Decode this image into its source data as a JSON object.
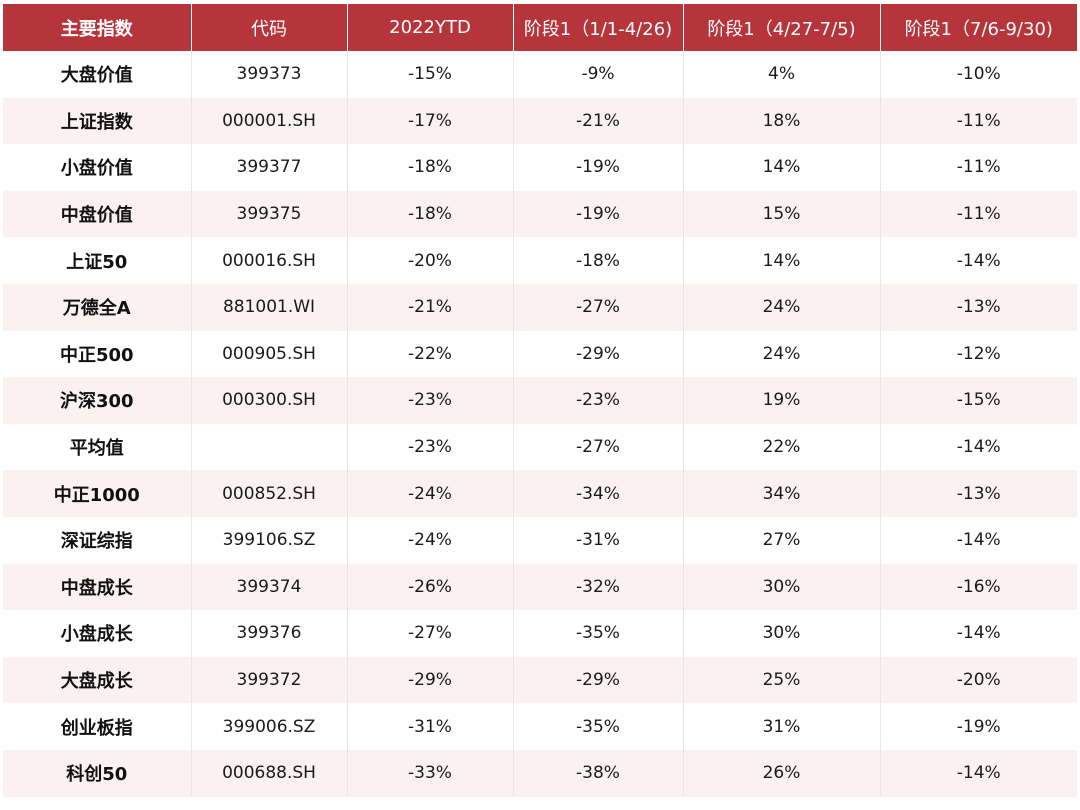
{
  "chart_data": {
    "type": "table",
    "columns": [
      "主要指数",
      "代码",
      "2022YTD",
      "阶段1（1/1-4/26)",
      "阶段1（4/27-7/5)",
      "阶段1（7/6-9/30)"
    ],
    "rows": [
      [
        "大盘价值",
        "399373",
        "-15%",
        "-9%",
        "4%",
        "-10%"
      ],
      [
        "上证指数",
        "000001.SH",
        "-17%",
        "-21%",
        "18%",
        "-11%"
      ],
      [
        "小盘价值",
        "399377",
        "-18%",
        "-19%",
        "14%",
        "-11%"
      ],
      [
        "中盘价值",
        "399375",
        "-18%",
        "-19%",
        "15%",
        "-11%"
      ],
      [
        "上证50",
        "000016.SH",
        "-20%",
        "-18%",
        "14%",
        "-14%"
      ],
      [
        "万德全A",
        "881001.WI",
        "-21%",
        "-27%",
        "24%",
        "-13%"
      ],
      [
        "中正500",
        "000905.SH",
        "-22%",
        "-29%",
        "24%",
        "-12%"
      ],
      [
        "沪深300",
        "000300.SH",
        "-23%",
        "-23%",
        "19%",
        "-15%"
      ],
      [
        "平均值",
        "",
        "-23%",
        "-27%",
        "22%",
        "-14%"
      ],
      [
        "中正1000",
        "000852.SH",
        "-24%",
        "-34%",
        "34%",
        "-13%"
      ],
      [
        "深证综指",
        "399106.SZ",
        "-24%",
        "-31%",
        "27%",
        "-14%"
      ],
      [
        "中盘成长",
        "399374",
        "-26%",
        "-32%",
        "30%",
        "-16%"
      ],
      [
        "小盘成长",
        "399376",
        "-27%",
        "-35%",
        "30%",
        "-14%"
      ],
      [
        "大盘成长",
        "399372",
        "-29%",
        "-29%",
        "25%",
        "-20%"
      ],
      [
        "创业板指",
        "399006.SZ",
        "-31%",
        "-35%",
        "31%",
        "-19%"
      ],
      [
        "科创50",
        "000688.SH",
        "-33%",
        "-38%",
        "26%",
        "-14%"
      ]
    ]
  },
  "colors": {
    "header_bg": "#b5353a",
    "header_text": "#ffffff",
    "row_alt_bg": "#fbf1f1",
    "row_bg": "#ffffff"
  }
}
